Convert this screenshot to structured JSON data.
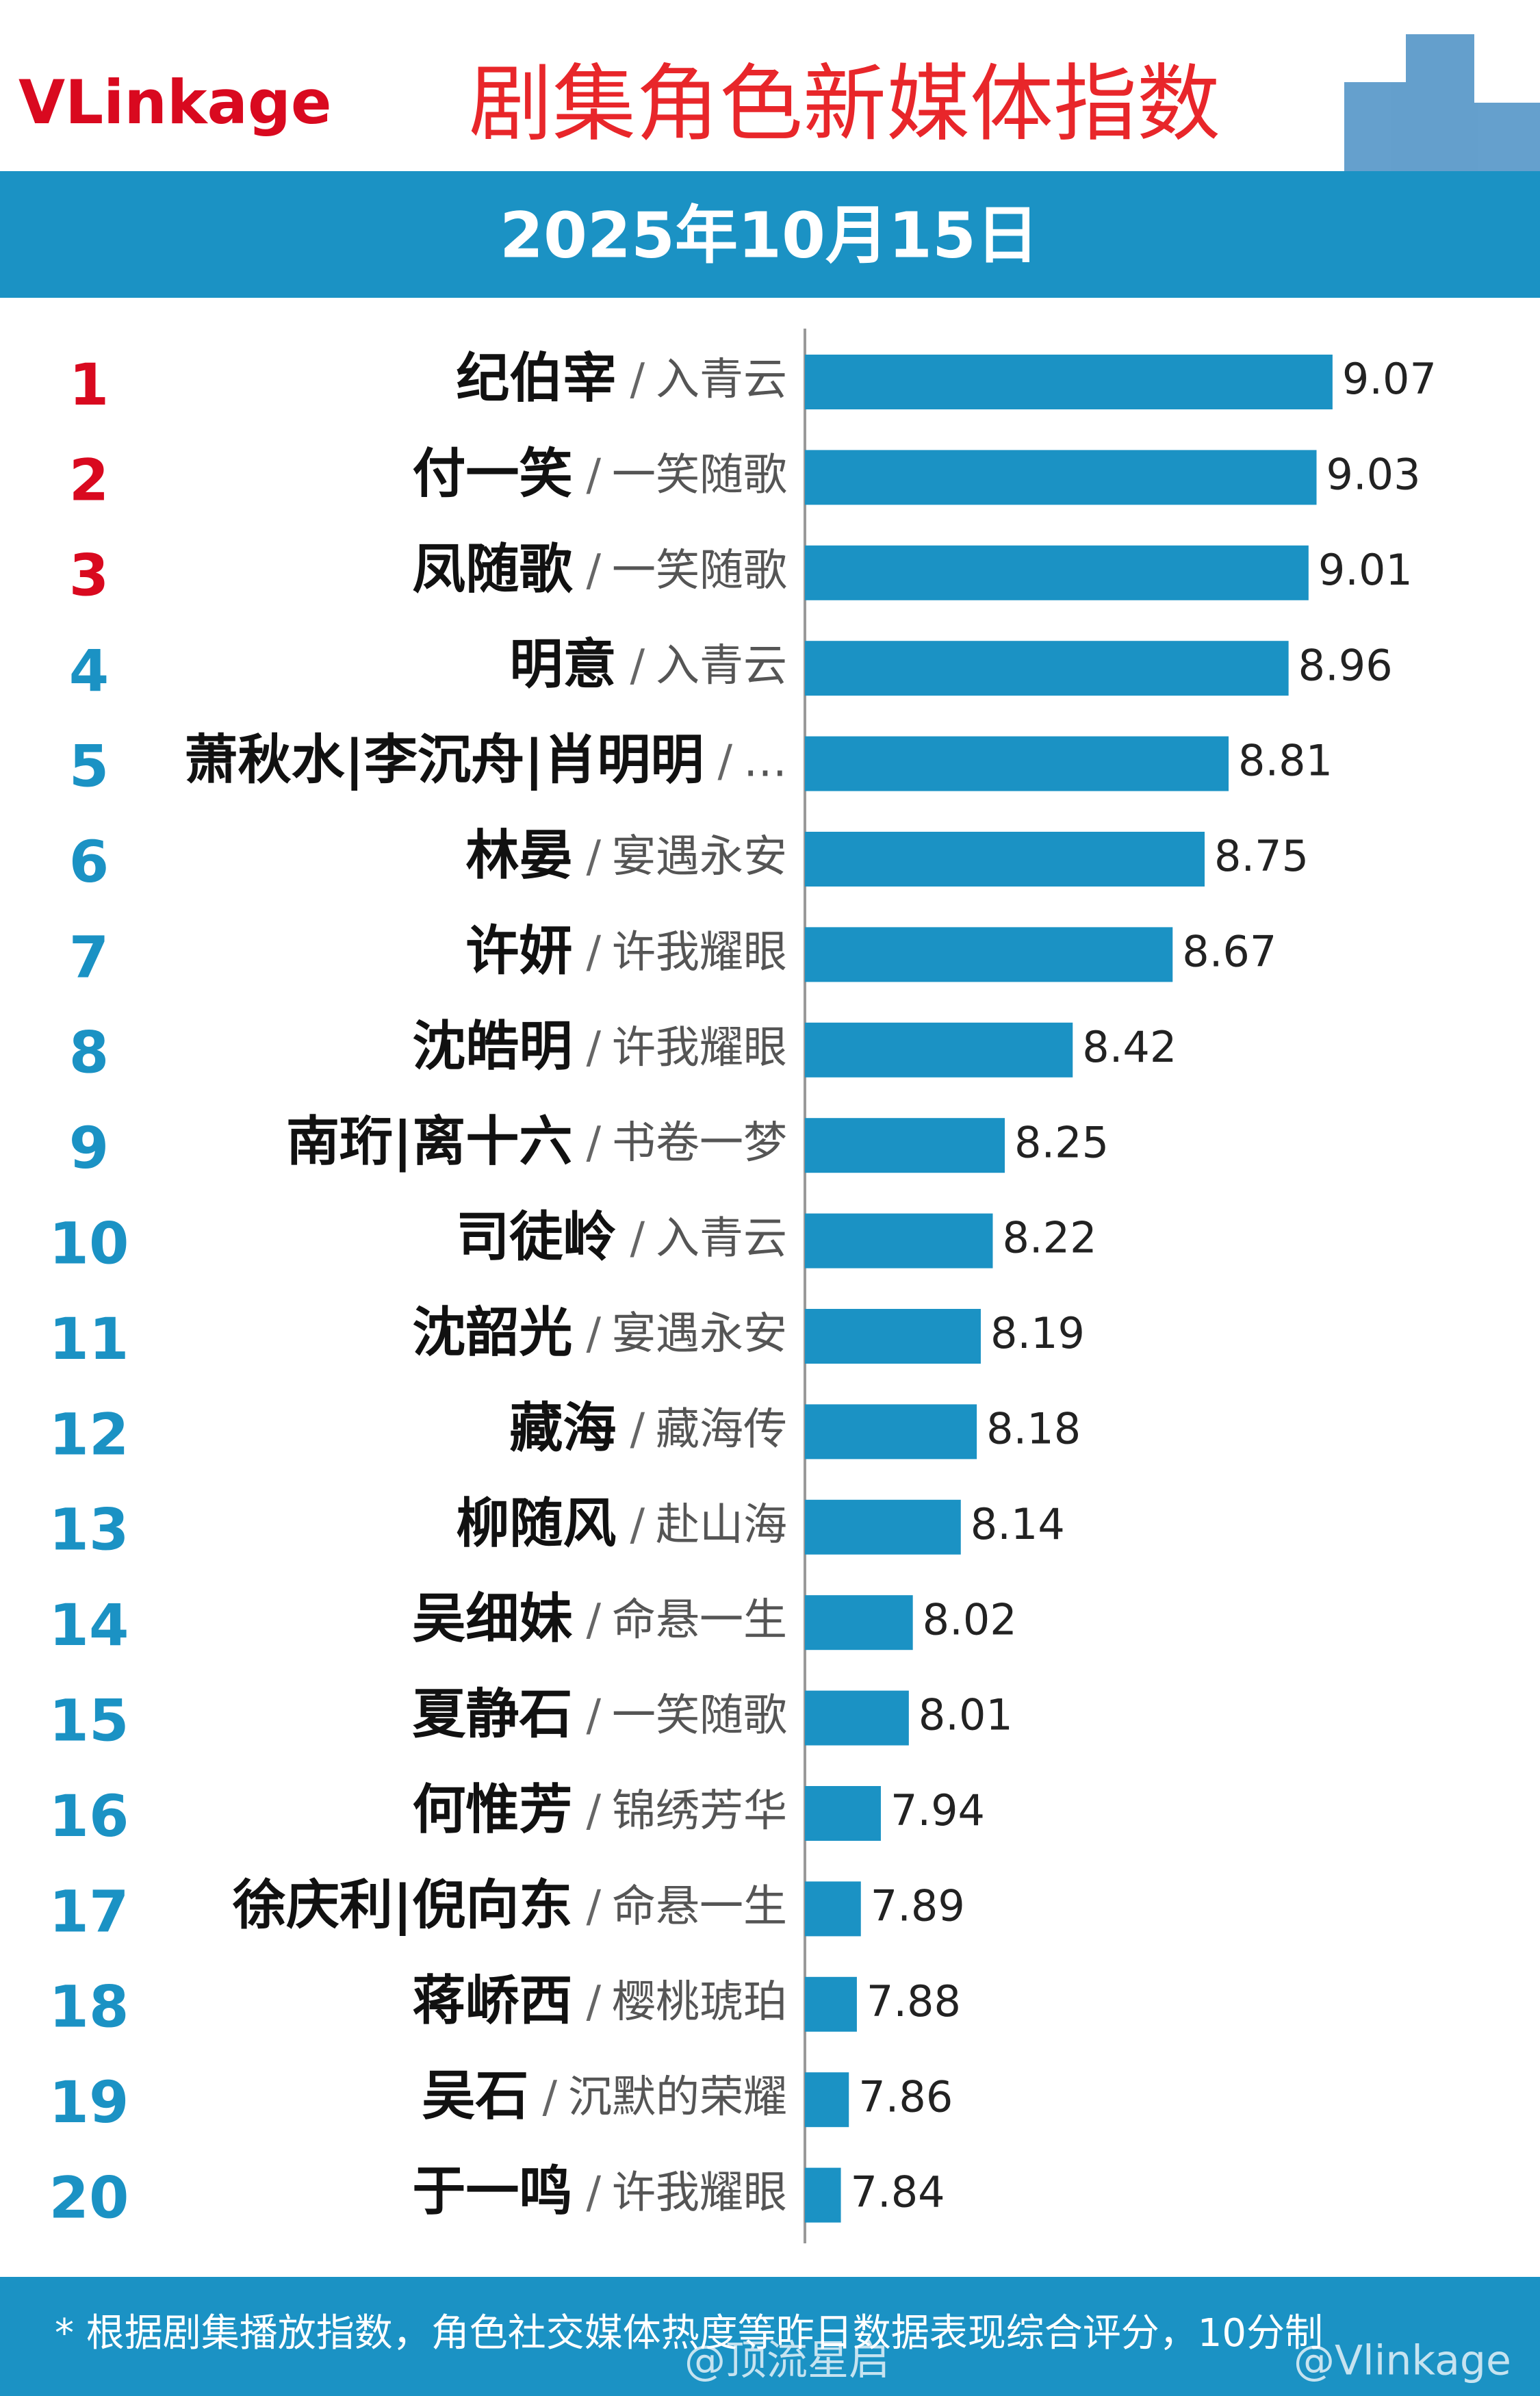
{
  "chart_data": {
    "type": "bar",
    "orientation": "horizontal",
    "logo": "VLinkage",
    "title": "剧集角色新媒体指数",
    "subtitle": "2025年10月15日",
    "ranks": [
      1,
      2,
      3,
      4,
      5,
      6,
      7,
      8,
      9,
      10,
      11,
      12,
      13,
      14,
      15,
      16,
      17,
      18,
      19,
      20
    ],
    "categories": [
      "纪伯宰",
      "付一笑",
      "凤随歌",
      "明意",
      "萧秋水|李沉舟|肖明明",
      "林晏",
      "许妍",
      "沈皓明",
      "南珩|离十六",
      "司徒岭",
      "沈韶光",
      "藏海",
      "柳随风",
      "吴细妹",
      "夏静石",
      "何惟芳",
      "徐庆利|倪向东",
      "蒋峤西",
      "吴石",
      "于一鸣"
    ],
    "separator": "/",
    "dramas": [
      "入青云",
      "一笑随歌",
      "一笑随歌",
      "入青云",
      "…",
      "宴遇永安",
      "许我耀眼",
      "许我耀眼",
      "书卷一梦",
      "入青云",
      "宴遇永安",
      "藏海传",
      "赴山海",
      "命悬一生",
      "一笑随歌",
      "锦绣芳华",
      "命悬一生",
      "樱桃琥珀",
      "沉默的荣耀",
      "许我耀眼"
    ],
    "values": [
      9.07,
      9.03,
      9.01,
      8.96,
      8.81,
      8.75,
      8.67,
      8.42,
      8.25,
      8.22,
      8.19,
      8.18,
      8.14,
      8.02,
      8.01,
      7.94,
      7.89,
      7.88,
      7.86,
      7.84
    ],
    "value_labels": [
      "9.07",
      "9.03",
      "9.01",
      "8.96",
      "8.81",
      "8.75",
      "8.67",
      "8.42",
      "8.25",
      "8.22",
      "8.19",
      "8.18",
      "8.14",
      "8.02",
      "8.01",
      "7.94",
      "7.89",
      "7.88",
      "7.86",
      "7.84"
    ],
    "xlim": [
      7.75,
      9.25
    ],
    "color": "#1b92c4",
    "top_rank_color": "#d9091f",
    "rank_color": "#1b92c4",
    "footnote": "* 根据剧集播放指数，角色社交媒体热度等昨日数据表现综合评分，10分制",
    "watermarks": [
      "@顶流星启",
      "@Vlinkage"
    ]
  }
}
